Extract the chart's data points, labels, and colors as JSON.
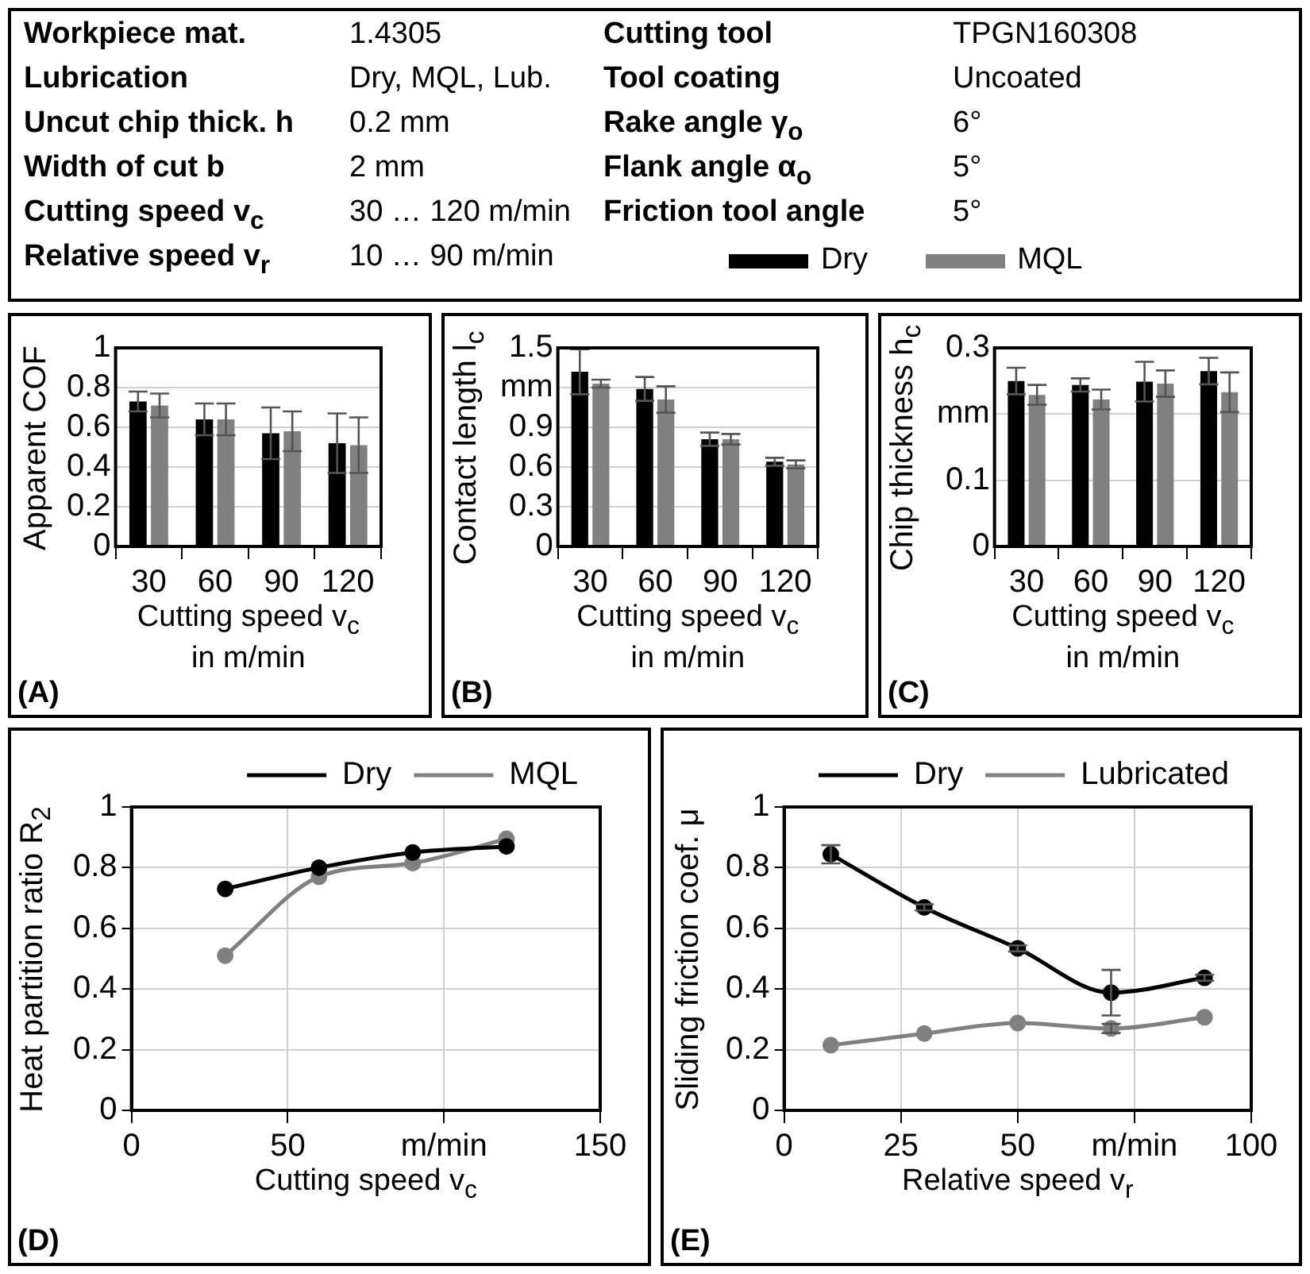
{
  "chart_data": [
    {
      "type": "other",
      "annotations": [
        "Workpiece mat.",
        "1.4305",
        "Cutting tool",
        "TPGN160308",
        "Lubrication",
        "Dry, MQL, Lub.",
        "Tool coating",
        "Uncoated",
        "Uncut chip thick. h",
        "0.2 mm",
        "Rake angle γ$_{o}$",
        "6°",
        "Width of cut b",
        "2 mm",
        "Flank angle α$_{o}$",
        "5°",
        "Cutting speed v$_{c}$",
        "30 … 120 m/min",
        "Friction tool angle",
        "5°",
        "Relative speed v$_{r}$",
        "10 … 90 m/min"
      ]
    },
    {
      "type": "bar",
      "categories": [
        "30",
        "60",
        "90",
        "120"
      ],
      "xlabel": "Cutting speed v$_{c}$\nin m/min",
      "ylabel": "Apparent COF",
      "ylim": [
        0,
        1
      ],
      "yticks": [
        0,
        0.2,
        0.4,
        0.6,
        0.8,
        1
      ],
      "grid": "y",
      "legend": "top",
      "annotations": [
        "(A)"
      ],
      "series": [
        {
          "name": "Dry",
          "color": "#000000",
          "values": [
            0.73,
            0.64,
            0.57,
            0.52
          ],
          "errors": [
            0.05,
            0.08,
            0.13,
            0.15
          ]
        },
        {
          "name": "MQL",
          "color": "#808080",
          "values": [
            0.71,
            0.64,
            0.58,
            0.51
          ],
          "errors": [
            0.06,
            0.08,
            0.1,
            0.14
          ]
        }
      ]
    },
    {
      "type": "bar",
      "categories": [
        "30",
        "60",
        "90",
        "120"
      ],
      "xlabel": "Cutting speed v$_{c}$\nin m/min",
      "ylabel": "Contact length l$_{c}$",
      "ylim": [
        0,
        1.5
      ],
      "yticks": [
        0,
        0.3,
        0.6,
        0.9,
        {
          "value": 1.2,
          "label": "mm"
        },
        1.5
      ],
      "grid": "y",
      "annotations": [
        "(B)"
      ],
      "series": [
        {
          "color": "#000000",
          "values": [
            1.32,
            1.19,
            0.81,
            0.64
          ],
          "errors": [
            0.17,
            0.09,
            0.05,
            0.03
          ]
        },
        {
          "color": "#808080",
          "values": [
            1.23,
            1.11,
            0.81,
            0.62
          ],
          "errors": [
            0.03,
            0.1,
            0.04,
            0.03
          ]
        }
      ]
    },
    {
      "type": "bar",
      "categories": [
        "30",
        "60",
        "90",
        "120"
      ],
      "xlabel": "Cutting speed v$_{c}$\nin m/min",
      "ylabel": "Chip thickness h$_{c}$",
      "ylim": [
        0,
        0.3
      ],
      "yticks": [
        0,
        0.1,
        {
          "value": 0.2,
          "label": "mm"
        },
        0.3
      ],
      "grid": "y",
      "annotations": [
        "(C)"
      ],
      "series": [
        {
          "color": "#000000",
          "values": [
            0.25,
            0.244,
            0.249,
            0.265
          ],
          "errors": [
            0.02,
            0.01,
            0.03,
            0.02
          ]
        },
        {
          "color": "#808080",
          "values": [
            0.229,
            0.222,
            0.246,
            0.233
          ],
          "errors": [
            0.015,
            0.015,
            0.02,
            0.03
          ]
        }
      ]
    },
    {
      "type": "line",
      "x": [
        30,
        60,
        90,
        120
      ],
      "xlabel": "Cutting speed v$_{c}$",
      "ylabel": "Heat partition ratio R$_{2}$",
      "xlim": [
        0,
        150
      ],
      "xticks": [
        0,
        50,
        {
          "value": 100,
          "label": "m/min"
        },
        150
      ],
      "ylim": [
        0,
        1
      ],
      "yticks": [
        0,
        0.2,
        0.4,
        0.6,
        0.8,
        1
      ],
      "grid": true,
      "legend": "top",
      "marker": "circle",
      "annotations": [
        "(D)"
      ],
      "series": [
        {
          "name": "Dry",
          "color": "#000000",
          "values": [
            0.73,
            0.8,
            0.85,
            0.87
          ]
        },
        {
          "name": "MQL",
          "color": "#808080",
          "values": [
            0.51,
            0.77,
            0.815,
            0.895
          ]
        }
      ]
    },
    {
      "type": "line",
      "x": [
        10,
        30,
        50,
        70,
        90
      ],
      "xlabel": "Relative speed v$_{r}$",
      "ylabel": "Sliding friction coef. μ",
      "xlim": [
        0,
        100
      ],
      "xticks": [
        0,
        25,
        50,
        {
          "value": 75,
          "label": "m/min"
        },
        100
      ],
      "ylim": [
        0,
        1
      ],
      "yticks": [
        0,
        0.2,
        0.4,
        0.6,
        0.8,
        1
      ],
      "grid": true,
      "legend": "top",
      "marker": "circle",
      "annotations": [
        "(E)"
      ],
      "series": [
        {
          "name": "Dry",
          "color": "#000000",
          "values": [
            0.844,
            0.669,
            0.534,
            0.388,
            0.437
          ],
          "errors": [
            0.03,
            0.01,
            0.01,
            0.075,
            0.01
          ]
        },
        {
          "name": "Lubricated",
          "color": "#808080",
          "values": [
            0.215,
            0.253,
            0.288,
            0.27,
            0.307
          ],
          "errors": [
            null,
            null,
            null,
            0.015,
            null
          ]
        }
      ]
    }
  ]
}
